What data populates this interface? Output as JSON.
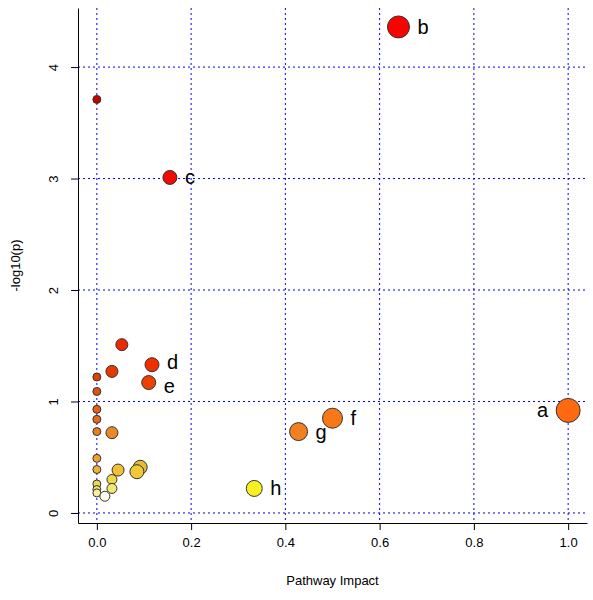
{
  "chart_data": {
    "type": "scatter",
    "x_label": "Pathway Impact",
    "y_label": "-log10(p)",
    "x": [
      0.64,
      0,
      0.155,
      0.053,
      0.117,
      0.032,
      0.11,
      0,
      0,
      1.0,
      0,
      0,
      0.5,
      0.428,
      0,
      0.032,
      0,
      0,
      0.045,
      0.092,
      0.085,
      0.334,
      0.032,
      0,
      0,
      0.032,
      0,
      0.017
    ],
    "values": [
      4.36,
      3.71,
      3.01,
      1.51,
      1.33,
      1.27,
      1.17,
      1.22,
      1.09,
      0.92,
      0.93,
      0.84,
      0.85,
      0.73,
      0.73,
      0.72,
      0.49,
      0.39,
      0.385,
      0.41,
      0.37,
      0.22,
      0.3,
      0.26,
      0.21,
      0.22,
      0.18,
      0.15
    ],
    "sizes": [
      11,
      4,
      7,
      6,
      7,
      6,
      7,
      4,
      4,
      12,
      4,
      4,
      10,
      9,
      4,
      6,
      4,
      4,
      6,
      7,
      7,
      8,
      5,
      4,
      4,
      5,
      4,
      5
    ],
    "colors": [
      "#ff0000",
      "#c80000",
      "#f00a00",
      "#f02800",
      "#f03000",
      "#e83800",
      "#f04000",
      "#e04000",
      "#e05010",
      "#ff6a10",
      "#e86010",
      "#e86818",
      "#f87818",
      "#f08020",
      "#e88020",
      "#e88828",
      "#f0a030",
      "#f0b030",
      "#f0c030",
      "#e8b838",
      "#f0c838",
      "#f8f020",
      "#f0d840",
      "#f0d850",
      "#f0e060",
      "#f0e870",
      "#f8f0a0",
      "#fffff0"
    ],
    "point_labels": [
      "b",
      null,
      "c",
      null,
      "d",
      null,
      "e",
      null,
      null,
      "a",
      null,
      null,
      "f",
      "g",
      null,
      null,
      null,
      null,
      null,
      null,
      null,
      "h",
      null,
      null,
      null,
      null,
      null,
      null
    ],
    "xlim": [
      -0.04,
      1.04
    ],
    "ylim": [
      -0.09,
      4.53
    ],
    "xticks": [
      {
        "value": 0,
        "label": "0.0"
      },
      0.2,
      0.4,
      0.6,
      0.8,
      {
        "value": 1,
        "label": "1.0"
      }
    ],
    "yticks": [
      0,
      1,
      2,
      3,
      4
    ],
    "grid": true,
    "marker": "circle"
  }
}
